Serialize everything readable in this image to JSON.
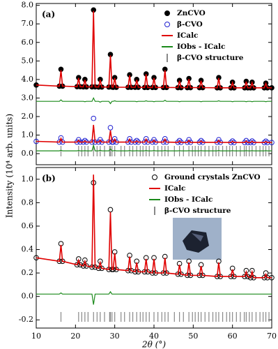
{
  "chart_data": [
    {
      "type": "line",
      "panel_label": "(a)",
      "ylabel": "Intensity (10⁴ arb. units)",
      "xlim": [
        10,
        70
      ],
      "xticks": [
        10,
        20,
        30,
        40,
        50,
        60,
        70
      ],
      "xticklabels": false,
      "ylim": [
        -0.6,
        8.1
      ],
      "yticks": [
        {
          "value": 0,
          "label": "0.0"
        },
        {
          "value": 1,
          "label": "1.0"
        },
        {
          "value": 2,
          "label": "2.0"
        },
        {
          "value": 3,
          "label": "3.0"
        },
        {
          "value": 4,
          "label": "4.0"
        },
        {
          "value": 5,
          "label": "5.0"
        },
        {
          "value": 6,
          "label": "6.0"
        },
        {
          "value": 7,
          "label": "7.0"
        },
        {
          "value": 8,
          "label": "8.0"
        }
      ],
      "legend": "upper right",
      "x": [
        10,
        15.9,
        16.3,
        16.7,
        20.4,
        20.8,
        21.2,
        22.0,
        22.4,
        22.8,
        24.2,
        24.6,
        25.0,
        25.9,
        26.3,
        26.7,
        28.5,
        28.9,
        29.3,
        29.6,
        30.0,
        30.4,
        33.4,
        33.8,
        34.2,
        35.2,
        35.6,
        36.0,
        37.6,
        38.0,
        38.4,
        39.6,
        40.0,
        40.4,
        42.4,
        42.8,
        43.2,
        46.1,
        46.5,
        46.9,
        48.5,
        48.9,
        49.3,
        51.6,
        52.0,
        52.4,
        56.1,
        56.5,
        56.9,
        59.6,
        60.0,
        60.4,
        63.1,
        63.5,
        63.9,
        64.6,
        65.0,
        65.4,
        68.1,
        68.5,
        68.9,
        70
      ],
      "series": [
        {
          "name": "ZnCVO",
          "marker": "filled",
          "color": "#000000",
          "values": [
            3.7,
            3.64,
            4.55,
            3.64,
            3.61,
            4.1,
            3.61,
            3.6,
            4.0,
            3.6,
            3.6,
            7.75,
            3.6,
            3.59,
            4.0,
            3.59,
            3.59,
            5.35,
            3.59,
            3.58,
            4.1,
            3.58,
            3.58,
            4.25,
            3.58,
            3.58,
            4.0,
            3.58,
            3.57,
            4.3,
            3.57,
            3.57,
            4.1,
            3.57,
            3.57,
            4.55,
            3.57,
            3.56,
            3.95,
            3.56,
            3.56,
            4.05,
            3.56,
            3.56,
            3.95,
            3.56,
            3.55,
            4.1,
            3.55,
            3.55,
            3.85,
            3.55,
            3.55,
            3.9,
            3.55,
            3.55,
            3.85,
            3.55,
            3.55,
            3.8,
            3.55,
            3.55
          ]
        },
        {
          "name": "β-CVO",
          "marker": "open",
          "color": "#1f1fd0",
          "values": [
            0.66,
            0.62,
            0.85,
            0.62,
            0.62,
            0.75,
            0.62,
            0.62,
            0.7,
            0.62,
            0.62,
            1.9,
            0.62,
            0.62,
            0.75,
            0.62,
            0.62,
            1.4,
            0.62,
            0.62,
            0.8,
            0.62,
            0.62,
            0.8,
            0.62,
            0.62,
            0.7,
            0.62,
            0.62,
            0.8,
            0.62,
            0.62,
            0.75,
            0.62,
            0.62,
            0.8,
            0.62,
            0.61,
            0.7,
            0.61,
            0.61,
            0.75,
            0.61,
            0.61,
            0.7,
            0.61,
            0.61,
            0.75,
            0.61,
            0.6,
            0.68,
            0.6,
            0.6,
            0.7,
            0.6,
            0.6,
            0.68,
            0.6,
            0.6,
            0.67,
            0.6,
            0.6
          ]
        },
        {
          "name": "ICalc",
          "marker": "line",
          "color": "#e00000",
          "values": [
            3.7,
            3.64,
            4.5,
            3.64,
            3.61,
            4.08,
            3.61,
            3.6,
            3.98,
            3.6,
            3.6,
            7.7,
            3.6,
            3.59,
            3.98,
            3.59,
            3.59,
            5.3,
            3.59,
            3.58,
            4.08,
            3.58,
            3.58,
            4.22,
            3.58,
            3.58,
            3.98,
            3.58,
            3.57,
            4.28,
            3.57,
            3.57,
            4.08,
            3.57,
            3.57,
            4.5,
            3.57,
            3.56,
            3.93,
            3.56,
            3.56,
            4.03,
            3.56,
            3.56,
            3.93,
            3.56,
            3.55,
            4.08,
            3.55,
            3.55,
            3.83,
            3.55,
            3.55,
            3.88,
            3.55,
            3.55,
            3.83,
            3.55,
            3.55,
            3.78,
            3.55,
            3.55
          ]
        },
        {
          "name": "IObs - ICalc",
          "marker": "line",
          "color": "#1a8a1a",
          "values": [
            2.82,
            2.82,
            2.9,
            2.82,
            2.82,
            2.82,
            2.82,
            2.82,
            2.8,
            2.82,
            2.82,
            3.0,
            2.82,
            2.82,
            2.78,
            2.82,
            2.82,
            2.7,
            2.82,
            2.82,
            2.85,
            2.82,
            2.82,
            2.82,
            2.82,
            2.82,
            2.8,
            2.82,
            2.82,
            2.85,
            2.82,
            2.82,
            2.8,
            2.82,
            2.82,
            2.88,
            2.82,
            2.82,
            2.8,
            2.82,
            2.82,
            2.82,
            2.82,
            2.82,
            2.8,
            2.82,
            2.82,
            2.85,
            2.82,
            2.82,
            2.8,
            2.82,
            2.82,
            2.8,
            2.82,
            2.82,
            2.8,
            2.82,
            2.82,
            2.8,
            2.82,
            2.82
          ]
        },
        {
          "marker": "line",
          "color": "#e00000",
          "values": [
            0.66,
            0.62,
            0.82,
            0.62,
            0.62,
            0.72,
            0.62,
            0.62,
            0.68,
            0.62,
            0.62,
            1.55,
            0.62,
            0.62,
            0.72,
            0.62,
            0.62,
            1.25,
            0.62,
            0.62,
            0.78,
            0.62,
            0.62,
            0.78,
            0.62,
            0.62,
            0.68,
            0.62,
            0.62,
            0.78,
            0.62,
            0.62,
            0.72,
            0.62,
            0.62,
            0.78,
            0.62,
            0.61,
            0.68,
            0.61,
            0.61,
            0.72,
            0.61,
            0.61,
            0.68,
            0.61,
            0.61,
            0.72,
            0.61,
            0.6,
            0.66,
            0.6,
            0.6,
            0.68,
            0.6,
            0.6,
            0.66,
            0.6,
            0.6,
            0.65,
            0.6,
            0.6
          ]
        },
        {
          "marker": "line",
          "color": "#1a8a1a",
          "values": [
            0.15,
            0.15,
            0.18,
            0.15,
            0.15,
            0.17,
            0.15,
            0.15,
            0.16,
            0.15,
            0.15,
            0.45,
            0.15,
            0.15,
            0.18,
            0.15,
            0.15,
            0.25,
            0.15,
            0.15,
            0.17,
            0.15,
            0.15,
            0.17,
            0.15,
            0.15,
            0.16,
            0.15,
            0.15,
            0.17,
            0.15,
            0.15,
            0.17,
            0.15,
            0.15,
            0.17,
            0.15,
            0.15,
            0.16,
            0.15,
            0.15,
            0.16,
            0.15,
            0.15,
            0.16,
            0.15,
            0.15,
            0.17,
            0.15,
            0.15,
            0.16,
            0.15,
            0.15,
            0.16,
            0.15,
            0.15,
            0.16,
            0.15,
            0.15,
            0.16,
            0.15,
            0.15
          ]
        }
      ],
      "bragg": {
        "name": "β-CVO structure",
        "color": "#888888",
        "positions": [
          16.3,
          20.8,
          21.6,
          22.4,
          23.2,
          24.6,
          25.5,
          26.3,
          27.4,
          28.7,
          28.9,
          29.3,
          30.0,
          31.6,
          32.5,
          33.8,
          34.6,
          35.6,
          36.5,
          37.2,
          38.0,
          38.8,
          40.0,
          41.0,
          42.0,
          42.8,
          43.6,
          45.2,
          46.5,
          47.5,
          48.9,
          49.8,
          50.5,
          51.3,
          52.0,
          53.0,
          54.0,
          55.0,
          55.8,
          56.5,
          57.5,
          58.5,
          59.3,
          60.0,
          61.0,
          62.0,
          63.0,
          63.5,
          64.3,
          65.0,
          66.0,
          67.0,
          67.8,
          68.5,
          69.3
        ]
      }
    },
    {
      "type": "line",
      "panel_label": "(b)",
      "xlabel": "2θ (°)",
      "xlim": [
        10,
        70
      ],
      "xticks": [
        10,
        20,
        30,
        40,
        50,
        60,
        70
      ],
      "xticklabels": true,
      "ylim": [
        -0.27,
        1.1
      ],
      "yticks": [
        -0.2,
        {
          "value": 0,
          "label": "0.0"
        },
        0.2,
        0.4,
        0.6,
        0.8,
        {
          "value": 1,
          "label": "1.0"
        }
      ],
      "legend": "upper right",
      "x": [
        10,
        15.9,
        16.3,
        16.7,
        20.4,
        20.8,
        21.2,
        22.0,
        22.4,
        22.8,
        24.2,
        24.6,
        25.0,
        25.9,
        26.3,
        26.7,
        28.5,
        28.9,
        29.3,
        29.6,
        30.0,
        30.4,
        33.4,
        33.8,
        34.2,
        35.2,
        35.6,
        36.0,
        37.6,
        38.0,
        38.4,
        39.6,
        40.0,
        40.4,
        42.4,
        42.8,
        43.2,
        46.1,
        46.5,
        46.9,
        48.5,
        48.9,
        49.3,
        51.6,
        52.0,
        52.4,
        56.1,
        56.5,
        56.9,
        59.6,
        60.0,
        60.4,
        63.1,
        63.5,
        63.9,
        64.6,
        65.0,
        65.4,
        68.1,
        68.5,
        68.9,
        70
      ],
      "series": [
        {
          "name": "Ground crystals ZnCVO",
          "marker": "open",
          "color": "#000000",
          "values": [
            0.33,
            0.3,
            0.45,
            0.3,
            0.27,
            0.32,
            0.27,
            0.26,
            0.31,
            0.26,
            0.25,
            0.97,
            0.25,
            0.24,
            0.3,
            0.24,
            0.23,
            0.74,
            0.23,
            0.23,
            0.38,
            0.23,
            0.22,
            0.35,
            0.22,
            0.21,
            0.3,
            0.21,
            0.21,
            0.33,
            0.21,
            0.2,
            0.33,
            0.2,
            0.2,
            0.34,
            0.2,
            0.19,
            0.28,
            0.19,
            0.18,
            0.3,
            0.18,
            0.18,
            0.27,
            0.18,
            0.17,
            0.3,
            0.17,
            0.17,
            0.24,
            0.17,
            0.17,
            0.22,
            0.17,
            0.16,
            0.22,
            0.16,
            0.16,
            0.2,
            0.16,
            0.16
          ]
        },
        {
          "name": "ICalc",
          "marker": "line",
          "color": "#e00000",
          "values": [
            0.33,
            0.3,
            0.44,
            0.3,
            0.27,
            0.31,
            0.27,
            0.26,
            0.3,
            0.26,
            0.25,
            1.04,
            0.25,
            0.24,
            0.29,
            0.24,
            0.23,
            0.72,
            0.23,
            0.23,
            0.37,
            0.23,
            0.22,
            0.34,
            0.22,
            0.21,
            0.29,
            0.21,
            0.21,
            0.32,
            0.21,
            0.2,
            0.32,
            0.2,
            0.2,
            0.33,
            0.2,
            0.19,
            0.27,
            0.19,
            0.18,
            0.29,
            0.18,
            0.18,
            0.26,
            0.18,
            0.17,
            0.29,
            0.17,
            0.17,
            0.23,
            0.17,
            0.17,
            0.21,
            0.17,
            0.16,
            0.21,
            0.16,
            0.16,
            0.19,
            0.16,
            0.16
          ]
        },
        {
          "name": "IObs - ICalc",
          "marker": "line",
          "color": "#1a8a1a",
          "values": [
            0.02,
            0.02,
            0.03,
            0.02,
            0.02,
            0.02,
            0.02,
            0.02,
            0.02,
            0.02,
            0.02,
            -0.07,
            0.02,
            0.02,
            0.02,
            0.02,
            0.02,
            0.04,
            0.02,
            0.02,
            0.02,
            0.02,
            0.02,
            0.02,
            0.02,
            0.02,
            0.02,
            0.02,
            0.02,
            0.02,
            0.02,
            0.02,
            0.02,
            0.02,
            0.02,
            0.02,
            0.02,
            0.02,
            0.02,
            0.02,
            0.02,
            0.02,
            0.02,
            0.02,
            0.02,
            0.02,
            0.02,
            0.02,
            0.02,
            0.02,
            0.02,
            0.02,
            0.02,
            0.02,
            0.02,
            0.02,
            0.02,
            0.02,
            0.02,
            0.02,
            0.02,
            0.02
          ]
        }
      ],
      "bragg": {
        "name": "β-CVO structure",
        "color": "#888888",
        "positions": [
          16.3,
          20.8,
          21.6,
          22.4,
          23.2,
          24.6,
          25.5,
          26.3,
          27.4,
          28.7,
          28.9,
          29.3,
          30.0,
          31.6,
          32.5,
          33.8,
          34.6,
          35.6,
          36.5,
          37.2,
          38.0,
          38.8,
          40.0,
          41.0,
          42.0,
          42.8,
          43.6,
          45.2,
          46.5,
          47.5,
          48.9,
          49.8,
          50.5,
          51.3,
          52.0,
          53.0,
          54.0,
          55.0,
          55.8,
          56.5,
          57.5,
          58.5,
          59.3,
          60.0,
          61.0,
          62.0,
          63.0,
          63.5,
          64.3,
          65.0,
          66.0,
          67.0,
          67.8,
          68.5,
          69.3
        ]
      }
    }
  ]
}
